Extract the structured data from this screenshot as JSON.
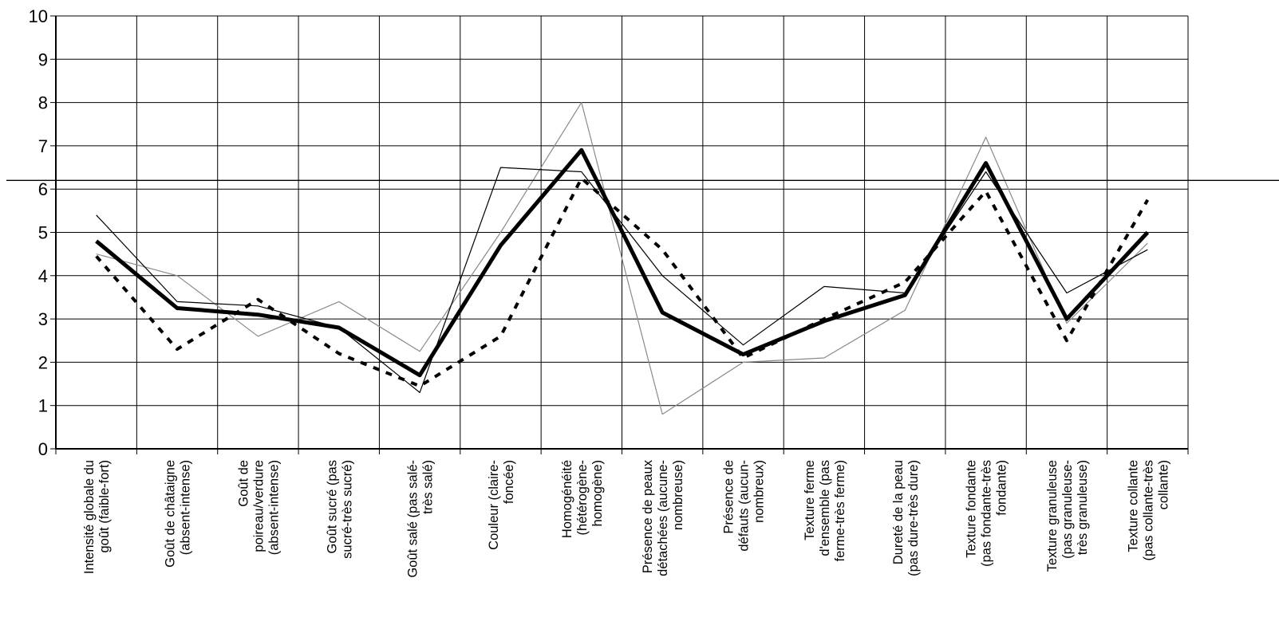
{
  "chart_data": {
    "type": "line",
    "title": "",
    "xlabel": "",
    "ylabel": "",
    "ylim": [
      0,
      10
    ],
    "yticks": [
      "0",
      "1",
      "2",
      "3",
      "4",
      "5",
      "6",
      "7",
      "8",
      "9",
      "10"
    ],
    "grid": true,
    "reference_line_y": 6.2,
    "categories": [
      [
        "Intensité globale du",
        "goût (faible-fort)"
      ],
      [
        "Goût de châtaigne",
        "(absent-intense)"
      ],
      [
        "Goût de",
        "poireau/verdure",
        "(absent-intense)"
      ],
      [
        "Goût sucré (pas",
        "sucré-très sucré)"
      ],
      [
        "Goût salé (pas salé-",
        "très salé)"
      ],
      [
        "Couleur (claire-",
        "foncée)"
      ],
      [
        "Homogénéité",
        "(hétérogène-",
        "homogène)"
      ],
      [
        "Présence de peaux",
        "détachées (aucune-",
        "nombreuse)"
      ],
      [
        "Présence de",
        "défauts (aucun-",
        "nombreux)"
      ],
      [
        "Texture ferme",
        "d'ensemble (pas",
        "ferme-très ferme)"
      ],
      [
        "Dureté de la peau",
        "(pas dure-très dure)"
      ],
      [
        "Texture fondante",
        "(pas fondante-très",
        "fondante)"
      ],
      [
        "Texture granuleuse",
        "(pas granuleuse-",
        "très granuleuse)"
      ],
      [
        "Texture collante",
        "(pas collante-très",
        "collante)"
      ]
    ],
    "series": [
      {
        "style": "thick-black",
        "color": "#000000",
        "values": [
          4.8,
          3.25,
          3.1,
          2.8,
          1.7,
          4.7,
          6.9,
          3.15,
          2.18,
          2.95,
          3.55,
          6.6,
          3.0,
          5.0
        ]
      },
      {
        "style": "dashed-black",
        "color": "#000000",
        "values": [
          4.45,
          2.3,
          3.45,
          2.2,
          1.45,
          2.6,
          6.25,
          4.6,
          2.1,
          3.0,
          3.85,
          5.95,
          2.5,
          5.75
        ]
      },
      {
        "style": "thin-black",
        "color": "#000000",
        "values": [
          5.4,
          3.4,
          3.3,
          2.8,
          1.3,
          6.5,
          6.4,
          4.0,
          2.4,
          3.75,
          3.6,
          6.4,
          3.6,
          4.6
        ]
      },
      {
        "style": "thin-grey",
        "color": "#8a8a8a",
        "values": [
          4.5,
          4.0,
          2.6,
          3.4,
          2.25,
          5.0,
          8.0,
          0.8,
          2.0,
          2.1,
          3.2,
          7.2,
          2.9,
          4.75
        ]
      }
    ]
  }
}
